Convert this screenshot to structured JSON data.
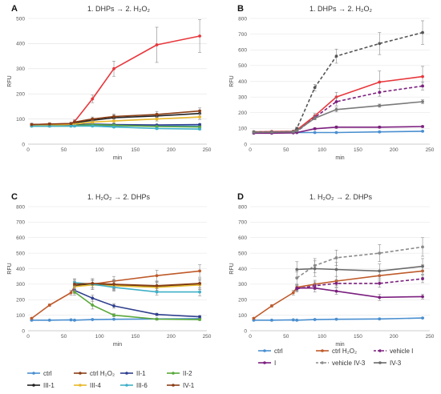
{
  "chart_data": [
    {
      "type": "line",
      "panel": "A",
      "title": "1. DHPs → 2. H₂O₂",
      "xlabel": "min",
      "ylabel": "RFU",
      "xlim": [
        0,
        250
      ],
      "ylim": [
        0,
        500
      ],
      "xticks": [
        0,
        50,
        100,
        150,
        200,
        250
      ],
      "yticks": [
        0,
        100,
        200,
        300,
        400,
        500
      ],
      "grid": "horizontal",
      "series": [
        {
          "name": "ctrl",
          "color": "#4a8fd0",
          "marker": "circle",
          "dash": false,
          "x": [
            5,
            30,
            60,
            65,
            90,
            120,
            180,
            240
          ],
          "y": [
            72,
            72,
            74,
            75,
            75,
            73,
            72,
            72
          ],
          "err": [
            3,
            3,
            3,
            3,
            3,
            3,
            3,
            3
          ]
        },
        {
          "name": "ctrl H₂O₂",
          "color": "#e8373c",
          "marker": "circle",
          "dash": false,
          "x": [
            5,
            30,
            60,
            65,
            90,
            120,
            180,
            240
          ],
          "y": [
            78,
            80,
            82,
            90,
            180,
            300,
            395,
            430
          ],
          "err": [
            5,
            5,
            5,
            8,
            15,
            30,
            70,
            65
          ]
        },
        {
          "name": "II-1",
          "color": "#2f3f8f",
          "marker": "circle",
          "dash": false,
          "x": [
            5,
            30,
            60,
            65,
            90,
            120,
            180,
            240
          ],
          "y": [
            75,
            75,
            76,
            78,
            80,
            78,
            76,
            78
          ],
          "err": [
            3,
            3,
            3,
            3,
            3,
            3,
            3,
            3
          ]
        },
        {
          "name": "II-2",
          "color": "#59a83a",
          "marker": "circle",
          "dash": false,
          "x": [
            5,
            30,
            60,
            65,
            90,
            120,
            180,
            240
          ],
          "y": [
            72,
            72,
            72,
            74,
            78,
            75,
            70,
            68
          ],
          "err": [
            3,
            3,
            3,
            3,
            3,
            3,
            3,
            3
          ]
        },
        {
          "name": "III-1",
          "color": "#222222",
          "marker": "circle",
          "dash": false,
          "x": [
            5,
            30,
            60,
            65,
            90,
            120,
            180,
            240
          ],
          "y": [
            78,
            78,
            80,
            85,
            95,
            105,
            112,
            122
          ],
          "err": [
            4,
            4,
            4,
            5,
            8,
            10,
            10,
            12
          ]
        },
        {
          "name": "III-4",
          "color": "#e8b82a",
          "marker": "circle",
          "dash": false,
          "x": [
            5,
            30,
            60,
            65,
            90,
            120,
            180,
            240
          ],
          "y": [
            76,
            76,
            78,
            80,
            88,
            92,
            100,
            108
          ],
          "err": [
            4,
            4,
            4,
            5,
            6,
            8,
            8,
            10
          ]
        },
        {
          "name": "III-6",
          "color": "#3fb0c8",
          "marker": "circle",
          "dash": false,
          "x": [
            5,
            30,
            60,
            65,
            90,
            120,
            180,
            240
          ],
          "y": [
            72,
            72,
            72,
            72,
            72,
            68,
            62,
            60
          ],
          "err": [
            3,
            3,
            3,
            3,
            3,
            3,
            3,
            3
          ]
        },
        {
          "name": "IV-1",
          "color": "#8a3e16",
          "marker": "circle",
          "dash": false,
          "x": [
            5,
            30,
            60,
            65,
            90,
            120,
            180,
            240
          ],
          "y": [
            78,
            80,
            82,
            88,
            100,
            110,
            118,
            132
          ],
          "err": [
            4,
            4,
            4,
            5,
            8,
            10,
            12,
            12
          ]
        }
      ]
    },
    {
      "type": "line",
      "panel": "B",
      "title": "1. DHPs → 2. H₂O₂",
      "xlabel": "min",
      "ylabel": "RFU",
      "xlim": [
        0,
        250
      ],
      "ylim": [
        0,
        800
      ],
      "xticks": [
        0,
        50,
        100,
        150,
        200,
        250
      ],
      "yticks": [
        0,
        100,
        200,
        300,
        400,
        500,
        600,
        700,
        800
      ],
      "grid": "horizontal",
      "series": [
        {
          "name": "ctrl",
          "color": "#4a8fd0",
          "marker": "circle",
          "dash": false,
          "x": [
            5,
            30,
            60,
            65,
            90,
            120,
            180,
            240
          ],
          "y": [
            72,
            72,
            74,
            74,
            74,
            74,
            78,
            82
          ],
          "err": [
            3,
            3,
            3,
            3,
            3,
            3,
            3,
            3
          ]
        },
        {
          "name": "ctrl H₂O₂",
          "color": "#e8373c",
          "marker": "circle",
          "dash": false,
          "x": [
            5,
            30,
            60,
            65,
            90,
            120,
            180,
            240
          ],
          "y": [
            78,
            80,
            82,
            90,
            180,
            300,
            395,
            430
          ],
          "err": [
            5,
            5,
            5,
            8,
            15,
            30,
            70,
            65
          ]
        },
        {
          "name": "vehicle I",
          "color": "#7b1f7e",
          "marker": "circle",
          "dash": true,
          "x": [
            5,
            30,
            60,
            65,
            90,
            120,
            180,
            240
          ],
          "y": [
            72,
            72,
            74,
            80,
            170,
            270,
            330,
            370
          ],
          "err": [
            4,
            4,
            4,
            5,
            15,
            25,
            25,
            25
          ]
        },
        {
          "name": "I",
          "color": "#7b1f7e",
          "marker": "circle",
          "dash": false,
          "x": [
            5,
            30,
            60,
            65,
            90,
            120,
            180,
            240
          ],
          "y": [
            70,
            70,
            72,
            74,
            98,
            108,
            108,
            112
          ],
          "err": [
            3,
            3,
            3,
            3,
            6,
            8,
            6,
            6
          ]
        },
        {
          "name": "vehicle IV-3",
          "color": "#555555",
          "marker": "circle",
          "dash": true,
          "x": [
            5,
            30,
            60,
            65,
            90,
            120,
            180,
            240
          ],
          "y": [
            78,
            78,
            80,
            100,
            360,
            560,
            640,
            710
          ],
          "err": [
            4,
            4,
            5,
            8,
            20,
            45,
            70,
            75
          ]
        },
        {
          "name": "IV-3",
          "color": "#7a7a7a",
          "marker": "circle",
          "dash": false,
          "x": [
            5,
            30,
            60,
            65,
            90,
            120,
            180,
            240
          ],
          "y": [
            75,
            76,
            78,
            85,
            165,
            220,
            245,
            270
          ],
          "err": [
            4,
            4,
            4,
            5,
            10,
            15,
            10,
            12
          ]
        }
      ]
    },
    {
      "type": "line",
      "panel": "C",
      "title": "1. H₂O₂ → 2. DHPs",
      "xlabel": "min",
      "ylabel": "RFU",
      "xlim": [
        0,
        250
      ],
      "ylim": [
        0,
        800
      ],
      "xticks": [
        0,
        50,
        100,
        150,
        200,
        250
      ],
      "yticks": [
        0,
        100,
        200,
        300,
        400,
        500,
        600,
        700,
        800
      ],
      "grid": "horizontal",
      "series": [
        {
          "name": "ctrl",
          "color": "#4a8fd0",
          "marker": "circle",
          "dash": false,
          "x": [
            5,
            30,
            60,
            65,
            90,
            120,
            180,
            240
          ],
          "y": [
            68,
            68,
            70,
            68,
            72,
            74,
            76,
            78
          ],
          "err": [
            3,
            3,
            3,
            3,
            3,
            3,
            3,
            3
          ]
        },
        {
          "name": "ctrl H₂O₂",
          "color": "#bf5a2a",
          "marker": "circle",
          "dash": false,
          "x": [
            5,
            30,
            60,
            65,
            90,
            120,
            180,
            240
          ],
          "y": [
            80,
            165,
            245,
            285,
            300,
            320,
            355,
            385
          ],
          "err": [
            6,
            8,
            15,
            20,
            25,
            30,
            35,
            40
          ]
        },
        {
          "name": "II-1",
          "color": "#2f3f8f",
          "marker": "circle",
          "dash": false,
          "x": [
            65,
            90,
            120,
            180,
            240
          ],
          "y": [
            260,
            210,
            160,
            105,
            90
          ],
          "err": [
            20,
            20,
            15,
            8,
            8
          ]
        },
        {
          "name": "II-2",
          "color": "#59a83a",
          "marker": "circle",
          "dash": false,
          "x": [
            65,
            90,
            120,
            180,
            240
          ],
          "y": [
            250,
            165,
            100,
            75,
            72
          ],
          "err": [
            20,
            25,
            10,
            6,
            6
          ]
        },
        {
          "name": "III-1",
          "color": "#222222",
          "marker": "circle",
          "dash": false,
          "x": [
            65,
            90,
            120,
            180,
            240
          ],
          "y": [
            290,
            300,
            295,
            285,
            300
          ],
          "err": [
            30,
            35,
            30,
            30,
            35
          ]
        },
        {
          "name": "III-4",
          "color": "#e8b82a",
          "marker": "circle",
          "dash": false,
          "x": [
            65,
            90,
            120,
            180,
            240
          ],
          "y": [
            285,
            295,
            290,
            280,
            295
          ],
          "err": [
            30,
            30,
            30,
            30,
            30
          ]
        },
        {
          "name": "III-6",
          "color": "#3fb0c8",
          "marker": "circle",
          "dash": false,
          "x": [
            65,
            90,
            120,
            180,
            240
          ],
          "y": [
            310,
            300,
            280,
            250,
            250
          ],
          "err": [
            25,
            25,
            25,
            20,
            25
          ]
        },
        {
          "name": "IV-1",
          "color": "#8a3e16",
          "marker": "circle",
          "dash": false,
          "x": [
            65,
            90,
            120,
            180,
            240
          ],
          "y": [
            300,
            305,
            300,
            290,
            305
          ],
          "err": [
            30,
            30,
            30,
            30,
            30
          ]
        }
      ]
    },
    {
      "type": "line",
      "panel": "D",
      "title": "1. H₂O₂ → 2. DHPs",
      "xlabel": "min",
      "ylabel": "RFU",
      "xlim": [
        0,
        250
      ],
      "ylim": [
        0,
        800
      ],
      "xticks": [
        0,
        50,
        100,
        150,
        200,
        250
      ],
      "yticks": [
        0,
        100,
        200,
        300,
        400,
        500,
        600,
        700,
        800
      ],
      "grid": "horizontal",
      "series": [
        {
          "name": "ctrl",
          "color": "#4a8fd0",
          "marker": "circle",
          "dash": false,
          "x": [
            5,
            30,
            60,
            65,
            90,
            120,
            180,
            240
          ],
          "y": [
            68,
            68,
            70,
            68,
            72,
            74,
            76,
            82
          ],
          "err": [
            3,
            3,
            3,
            3,
            3,
            3,
            3,
            3
          ]
        },
        {
          "name": "ctrl H₂O₂",
          "color": "#bf5a2a",
          "marker": "circle",
          "dash": false,
          "x": [
            5,
            30,
            60,
            65,
            90,
            120,
            180,
            240
          ],
          "y": [
            80,
            160,
            245,
            280,
            300,
            320,
            355,
            385
          ],
          "err": [
            6,
            8,
            15,
            20,
            25,
            30,
            35,
            40
          ]
        },
        {
          "name": "vehicle I",
          "color": "#7b1f7e",
          "marker": "circle",
          "dash": true,
          "x": [
            65,
            90,
            120,
            180,
            240
          ],
          "y": [
            270,
            290,
            305,
            305,
            335
          ],
          "err": [
            20,
            25,
            25,
            25,
            25
          ]
        },
        {
          "name": "I",
          "color": "#7b1f7e",
          "marker": "circle",
          "dash": false,
          "x": [
            65,
            90,
            120,
            180,
            240
          ],
          "y": [
            275,
            275,
            255,
            215,
            220
          ],
          "err": [
            20,
            25,
            20,
            20,
            15
          ]
        },
        {
          "name": "vehicle IV-3",
          "color": "#8a8a8a",
          "marker": "circle",
          "dash": true,
          "x": [
            65,
            90,
            120,
            180,
            240
          ],
          "y": [
            340,
            420,
            470,
            500,
            540
          ],
          "err": [
            40,
            45,
            50,
            55,
            60
          ]
        },
        {
          "name": "IV-3",
          "color": "#6a6a6a",
          "marker": "circle",
          "dash": false,
          "x": [
            65,
            90,
            120,
            180,
            240
          ],
          "y": [
            395,
            400,
            395,
            385,
            415
          ],
          "err": [
            50,
            50,
            45,
            45,
            50
          ]
        }
      ]
    }
  ],
  "legend_left": {
    "placement": "bottom-left",
    "entries": [
      {
        "name": "ctrl",
        "color": "#4a8fd0",
        "dash": false
      },
      {
        "name": "ctrl H₂O₂",
        "color": "#8a3e16",
        "dash": false
      },
      {
        "name": "II-1",
        "color": "#2f3f8f",
        "dash": false
      },
      {
        "name": "II-2",
        "color": "#59a83a",
        "dash": false
      },
      {
        "name": "III-1",
        "color": "#222222",
        "dash": false
      },
      {
        "name": "III-4",
        "color": "#e8b82a",
        "dash": false
      },
      {
        "name": "III-6",
        "color": "#3fb0c8",
        "dash": false
      },
      {
        "name": "IV-1",
        "color": "#8a3e16",
        "dash": false
      }
    ]
  },
  "legend_right": {
    "placement": "bottom-right",
    "entries": [
      {
        "name": "ctrl",
        "color": "#4a8fd0",
        "dash": false
      },
      {
        "name": "ctrl H₂O₂",
        "color": "#bf5a2a",
        "dash": false
      },
      {
        "name": "vehicle I",
        "color": "#7b1f7e",
        "dash": true
      },
      {
        "name": "I",
        "color": "#7b1f7e",
        "dash": false
      },
      {
        "name": "vehicle IV-3",
        "color": "#8a8a8a",
        "dash": true
      },
      {
        "name": "IV-3",
        "color": "#6a6a6a",
        "dash": false
      }
    ]
  }
}
